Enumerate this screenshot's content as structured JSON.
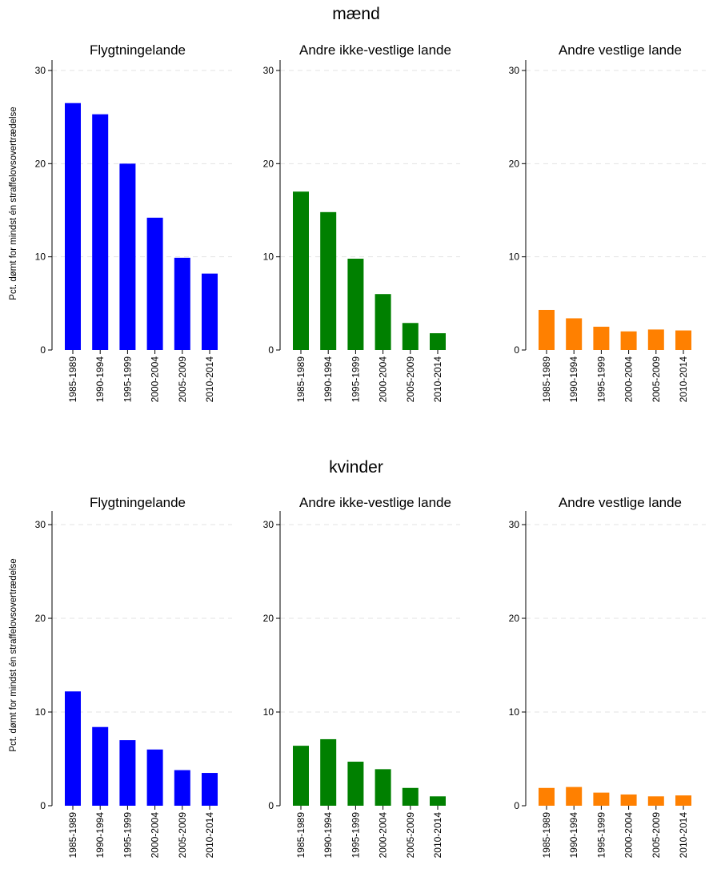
{
  "chart_data": [
    {
      "type": "bar",
      "row_title": "mænd",
      "title": "Flygtningelande",
      "ylabel": "Pct. dømt for mindst én straffelovsovertrædelse",
      "categories": [
        "1985-1989",
        "1990-1994",
        "1995-1999",
        "2000-2004",
        "2005-2009",
        "2010-2014"
      ],
      "values": [
        26.5,
        25.3,
        20.0,
        14.2,
        9.9,
        8.2
      ],
      "color": "#0000ff",
      "ylim": [
        0,
        30
      ],
      "yticks": [
        "0",
        "10",
        "20",
        "30"
      ],
      "grid": "horizontal dashed"
    },
    {
      "type": "bar",
      "row_title": "mænd",
      "title": "Andre ikke-vestlige lande",
      "categories": [
        "1985-1989",
        "1990-1994",
        "1995-1999",
        "2000-2004",
        "2005-2009",
        "2010-2014"
      ],
      "values": [
        17.0,
        14.8,
        9.8,
        6.0,
        2.9,
        1.8
      ],
      "color": "#008000",
      "ylim": [
        0,
        30
      ],
      "yticks": [
        "0",
        "10",
        "20",
        "30"
      ],
      "grid": "horizontal dashed"
    },
    {
      "type": "bar",
      "row_title": "mænd",
      "title": "Andre vestlige lande",
      "categories": [
        "1985-1989",
        "1990-1994",
        "1995-1999",
        "2000-2004",
        "2005-2009",
        "2010-2014"
      ],
      "values": [
        4.3,
        3.4,
        2.5,
        2.0,
        2.2,
        2.1
      ],
      "color": "#ff8000",
      "ylim": [
        0,
        30
      ],
      "yticks": [
        "0",
        "10",
        "20",
        "30"
      ],
      "grid": "horizontal dashed"
    },
    {
      "type": "bar",
      "row_title": "kvinder",
      "title": "Flygtningelande",
      "ylabel": "Pct. dømt for mindst én straffelovsovertrædelse",
      "categories": [
        "1985-1989",
        "1990-1994",
        "1995-1999",
        "2000-2004",
        "2005-2009",
        "2010-2014"
      ],
      "values": [
        12.2,
        8.4,
        7.0,
        6.0,
        3.8,
        3.5
      ],
      "color": "#0000ff",
      "ylim": [
        0,
        30
      ],
      "yticks": [
        "0",
        "10",
        "20",
        "30"
      ],
      "grid": "horizontal dashed"
    },
    {
      "type": "bar",
      "row_title": "kvinder",
      "title": "Andre ikke-vestlige lande",
      "categories": [
        "1985-1989",
        "1990-1994",
        "1995-1999",
        "2000-2004",
        "2005-2009",
        "2010-2014"
      ],
      "values": [
        6.4,
        7.1,
        4.7,
        3.9,
        1.9,
        1.0
      ],
      "color": "#008000",
      "ylim": [
        0,
        30
      ],
      "yticks": [
        "0",
        "10",
        "20",
        "30"
      ],
      "grid": "horizontal dashed"
    },
    {
      "type": "bar",
      "row_title": "kvinder",
      "title": "Andre vestlige lande",
      "categories": [
        "1985-1989",
        "1990-1994",
        "1995-1999",
        "2000-2004",
        "2005-2009",
        "2010-2014"
      ],
      "values": [
        1.9,
        2.0,
        1.4,
        1.2,
        1.0,
        1.1
      ],
      "color": "#ff8000",
      "ylim": [
        0,
        30
      ],
      "yticks": [
        "0",
        "10",
        "20",
        "30"
      ],
      "grid": "horizontal dashed"
    }
  ]
}
